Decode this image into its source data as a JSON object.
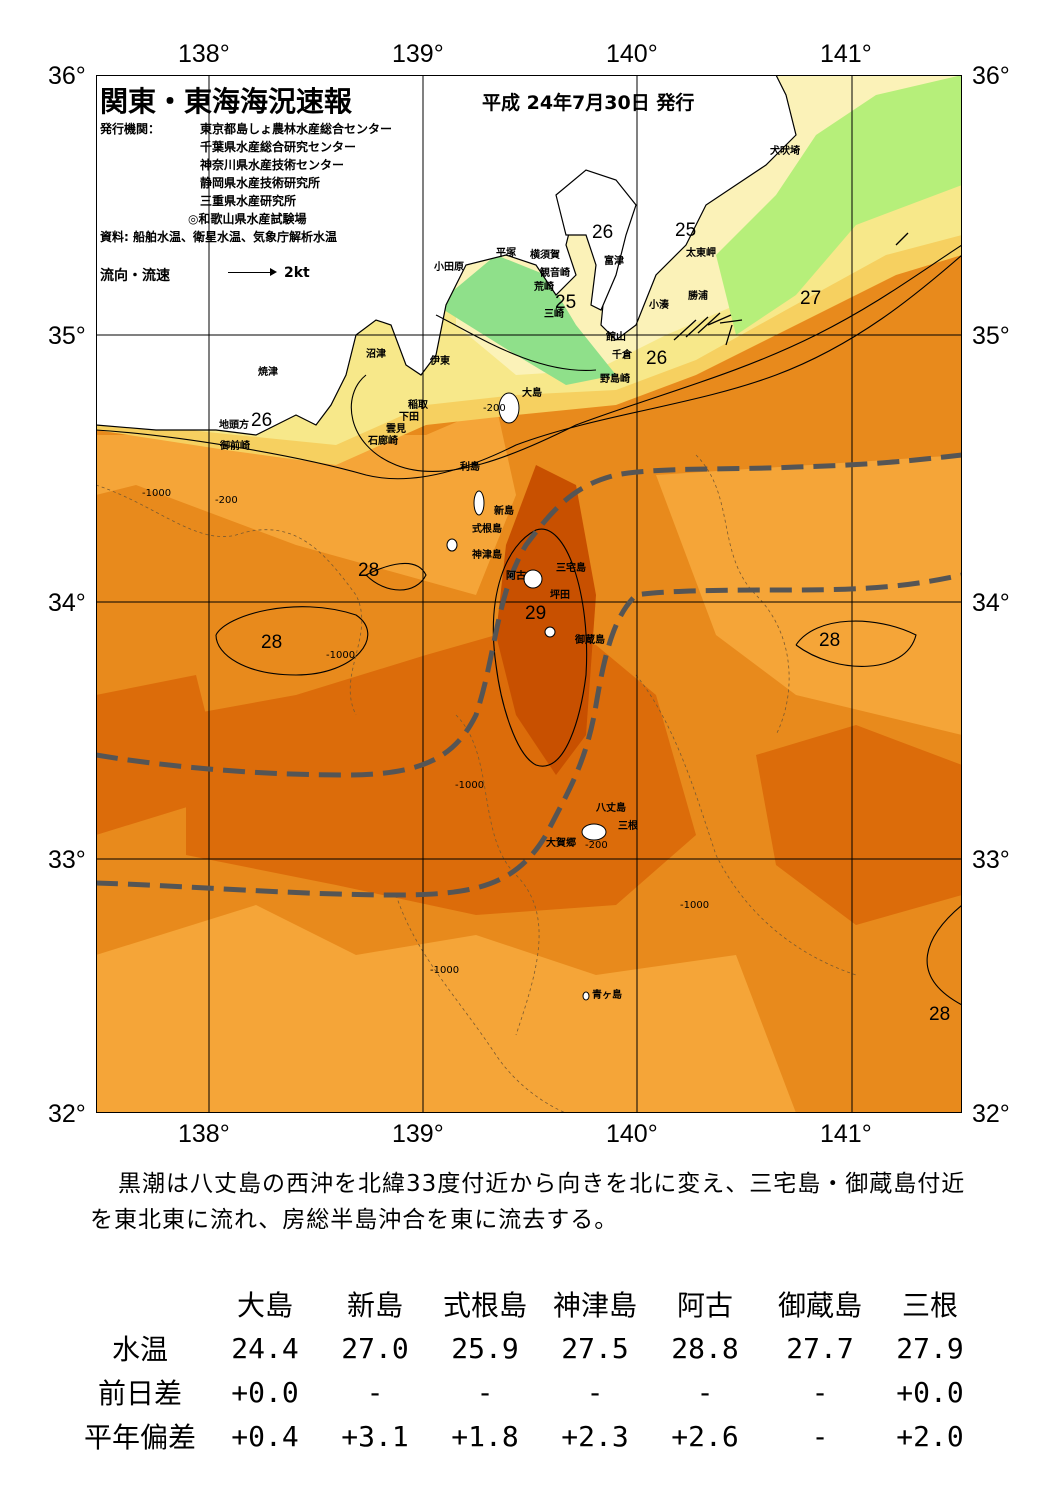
{
  "map": {
    "title": "関東・東海海況速報",
    "date": "平成 24年7月30日 発行",
    "issuer_label": "発行機関：",
    "issuers": [
      "東京都島しょ農林水産総合センター",
      "千葉県水産総合研究センター",
      "神奈川県水産技術センター",
      "静岡県水産技術研究所",
      "三重県水産研究所",
      "◎和歌山県水産試験場"
    ],
    "source": "資料: 船舶水温、衛星水温、気象庁解析水温",
    "legend_label": "流向・流速",
    "legend_scale": "2kt",
    "lon_ticks": [
      "138°",
      "139°",
      "140°",
      "141°"
    ],
    "lat_ticks": [
      "36°",
      "35°",
      "34°",
      "33°",
      "32°"
    ],
    "isotherm_labels": [
      "26",
      "25",
      "25",
      "27",
      "26",
      "26",
      "28",
      "28",
      "29",
      "28",
      "28"
    ],
    "depth_labels": [
      "-1000",
      "-200"
    ],
    "places": [
      "犬吠埼",
      "太東岬",
      "勝浦",
      "小湊",
      "富津",
      "横須賀",
      "観音崎",
      "荒崎",
      "三崎",
      "平塚",
      "小田原",
      "館山",
      "千倉",
      "野島崎",
      "大島",
      "沼津",
      "伊東",
      "稲取",
      "下田",
      "雲見",
      "石廊崎",
      "焼津",
      "地頭方",
      "御前崎",
      "利島",
      "新島",
      "式根島",
      "神津島",
      "三宅島",
      "阿古",
      "坪田",
      "御蔵島",
      "八丈島",
      "三根",
      "大賀郷",
      "青ヶ島"
    ],
    "colors": {
      "ocean_deep": "#e07c14",
      "ocean_mid": "#f09a28",
      "kuroshio": "#c85000",
      "warm": "#d86a08",
      "yellow": "#f7e88a",
      "pale": "#fdf6c4",
      "green": "#8de08a",
      "lime": "#b8f07a",
      "kuroshio_axis": "#555555"
    }
  },
  "summary": "黒潮は八丈島の西沖を北緯33度付近から向きを北に変え、三宅島・御蔵島付近を東北東に流れ、房総半島沖合を東に流去する。",
  "table": {
    "stations": [
      "大島",
      "新島",
      "式根島",
      "神津島",
      "阿古",
      "御蔵島",
      "三根"
    ],
    "rows": [
      {
        "label": "水温",
        "values": [
          "24.4",
          "27.0",
          "25.9",
          "27.5",
          "28.8",
          "27.7",
          "27.9"
        ]
      },
      {
        "label": "前日差",
        "values": [
          "+0.0",
          "-",
          "-",
          "-",
          "-",
          "-",
          "+0.0"
        ]
      },
      {
        "label": "平年偏差",
        "values": [
          "+0.4",
          "+3.1",
          "+1.8",
          "+2.3",
          "+2.6",
          "-",
          "+2.0"
        ]
      }
    ]
  }
}
